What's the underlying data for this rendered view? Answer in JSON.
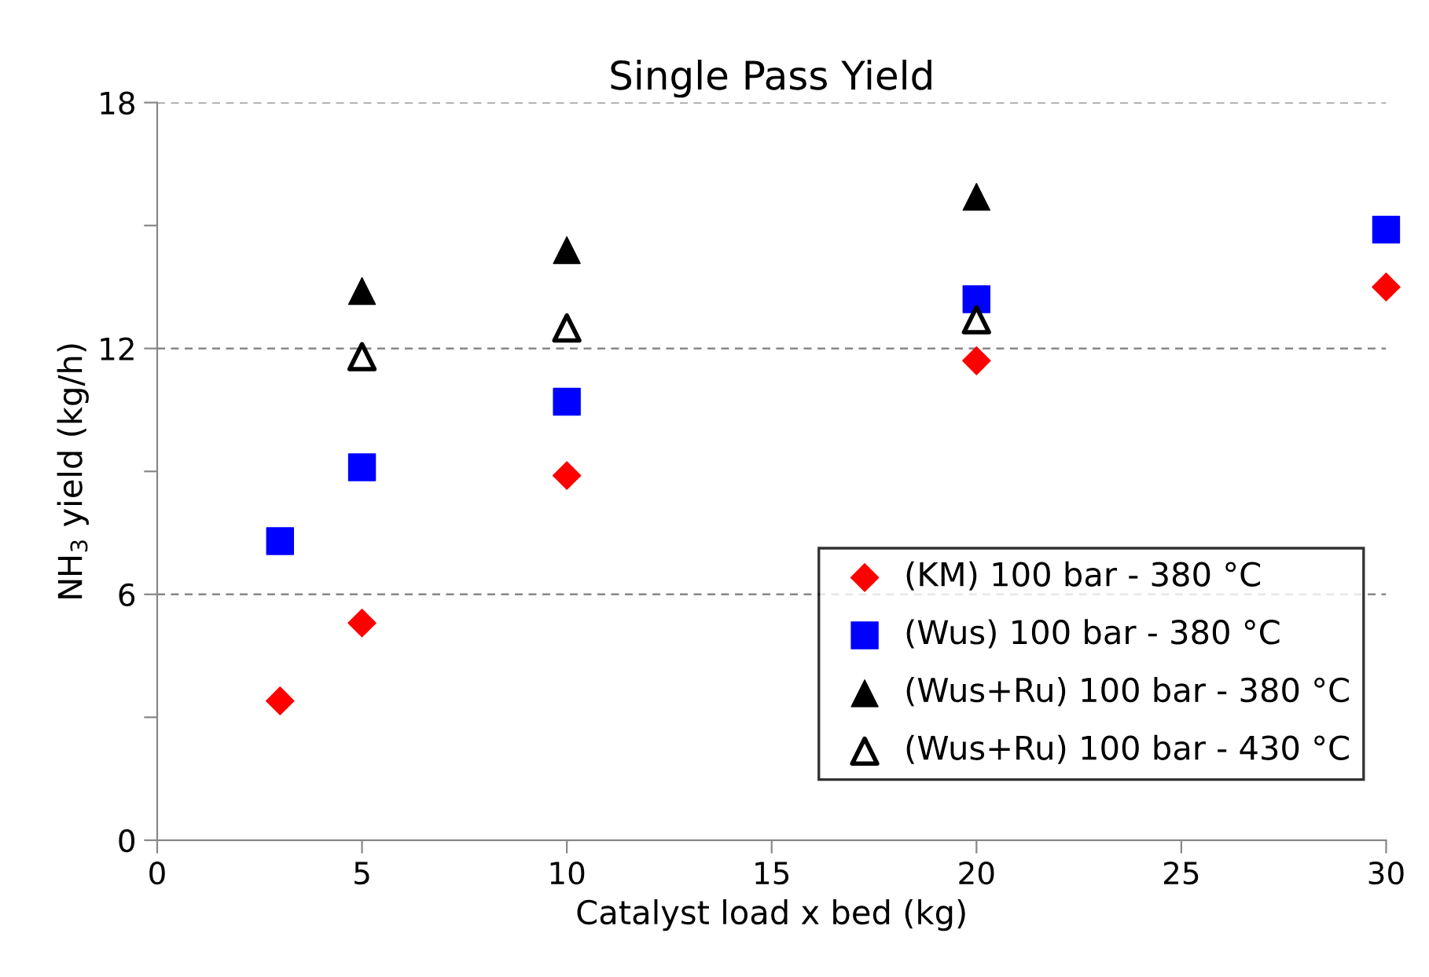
{
  "chart_data": {
    "type": "scatter",
    "title": "Single Pass Yield",
    "xlabel": "Catalyst load x bed (kg)",
    "ylabel": "NH$_{3}$ yield (kg/h)",
    "xlim": [
      0,
      30
    ],
    "xticks": [
      0,
      5,
      10,
      15,
      20,
      25,
      30
    ],
    "ylim": [
      0,
      18
    ],
    "yticks": [
      0,
      {
        "value": 3,
        "label": null
      },
      6,
      {
        "value": 9,
        "label": null
      },
      12,
      {
        "value": 15,
        "label": null
      },
      18
    ],
    "grid": "y",
    "legend": "bottom right",
    "series": [
      {
        "name": "(KM) 100 bar - 380 °C",
        "color": "#ff0000",
        "marker": "diamond",
        "x": [
          3,
          5,
          10,
          20,
          30
        ],
        "values": [
          3.4,
          5.3,
          8.9,
          11.7,
          13.5
        ]
      },
      {
        "name": "(Wus) 100 bar - 380 °C",
        "color": "#0000ff",
        "marker": "square",
        "x": [
          3,
          5,
          10,
          20,
          30
        ],
        "values": [
          7.3,
          9.1,
          10.7,
          13.2,
          14.9
        ]
      },
      {
        "name": "(Wus+Ru) 100 bar - 380 °C",
        "color": "#000000",
        "marker": "triangle",
        "x": [
          5,
          10,
          20
        ],
        "values": [
          13.4,
          14.4,
          15.7
        ]
      },
      {
        "name": "(Wus+Ru) 100 bar - 430 °C",
        "color": "#000000",
        "marker": "triangle-open",
        "x": [
          5,
          10,
          20
        ],
        "values": [
          11.8,
          12.5,
          12.7
        ]
      }
    ]
  }
}
